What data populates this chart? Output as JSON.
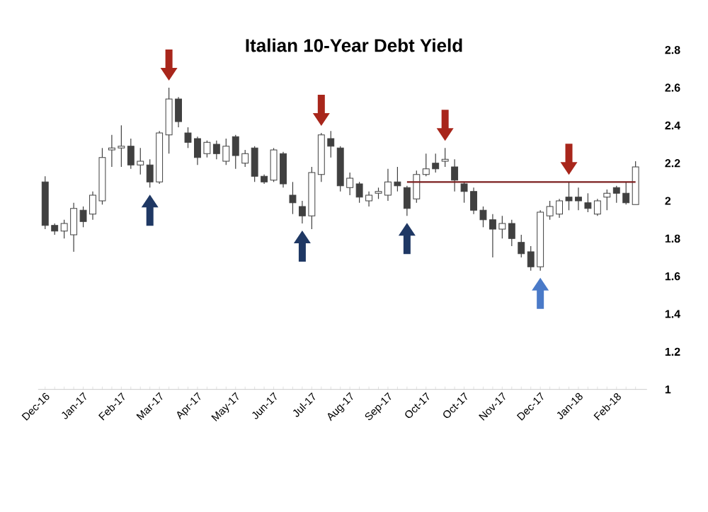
{
  "chart_data": {
    "type": "candlestick",
    "title": "Italian 10-Year Debt Yield",
    "categories": [
      "Dec-16",
      null,
      null,
      null,
      "Jan-17",
      null,
      null,
      null,
      "Feb-17",
      null,
      null,
      null,
      "Mar-17",
      null,
      null,
      null,
      "Apr-17",
      null,
      null,
      null,
      "May-17",
      null,
      null,
      null,
      "Jun-17",
      null,
      null,
      null,
      "Jul-17",
      null,
      null,
      null,
      "Aug-17",
      null,
      null,
      null,
      "Sep-17",
      null,
      null,
      null,
      "Oct-17",
      null,
      null,
      null,
      "Oct-17",
      null,
      null,
      null,
      "Nov-17",
      null,
      null,
      null,
      "Dec-17",
      null,
      null,
      null,
      "Jan-18",
      null,
      null,
      null,
      "Feb-18",
      null,
      null
    ],
    "ohlc": [
      [
        2.1,
        2.13,
        1.85,
        1.87
      ],
      [
        1.87,
        1.88,
        1.82,
        1.84
      ],
      [
        1.84,
        1.9,
        1.8,
        1.88
      ],
      [
        1.82,
        1.99,
        1.73,
        1.96
      ],
      [
        1.95,
        1.97,
        1.86,
        1.89
      ],
      [
        1.93,
        2.05,
        1.9,
        2.03
      ],
      [
        2.0,
        2.28,
        1.98,
        2.23
      ],
      [
        2.27,
        2.35,
        2.18,
        2.28
      ],
      [
        2.28,
        2.4,
        2.18,
        2.29
      ],
      [
        2.29,
        2.33,
        2.17,
        2.19
      ],
      [
        2.19,
        2.28,
        2.14,
        2.21
      ],
      [
        2.19,
        2.22,
        2.07,
        2.1
      ],
      [
        2.1,
        2.37,
        2.09,
        2.36
      ],
      [
        2.35,
        2.6,
        2.25,
        2.54
      ],
      [
        2.54,
        2.55,
        2.39,
        2.42
      ],
      [
        2.36,
        2.39,
        2.28,
        2.31
      ],
      [
        2.33,
        2.34,
        2.19,
        2.23
      ],
      [
        2.25,
        2.32,
        2.23,
        2.31
      ],
      [
        2.3,
        2.32,
        2.22,
        2.25
      ],
      [
        2.21,
        2.33,
        2.19,
        2.29
      ],
      [
        2.34,
        2.35,
        2.17,
        2.24
      ],
      [
        2.2,
        2.27,
        2.18,
        2.25
      ],
      [
        2.28,
        2.29,
        2.1,
        2.13
      ],
      [
        2.13,
        2.14,
        2.09,
        2.1
      ],
      [
        2.11,
        2.28,
        2.1,
        2.27
      ],
      [
        2.25,
        2.26,
        2.07,
        2.09
      ],
      [
        2.03,
        2.1,
        1.93,
        1.99
      ],
      [
        1.97,
        2.0,
        1.88,
        1.92
      ],
      [
        1.92,
        2.18,
        1.85,
        2.15
      ],
      [
        2.14,
        2.36,
        2.1,
        2.35
      ],
      [
        2.33,
        2.37,
        2.23,
        2.29
      ],
      [
        2.28,
        2.29,
        2.05,
        2.08
      ],
      [
        2.07,
        2.15,
        2.03,
        2.12
      ],
      [
        2.09,
        2.1,
        1.99,
        2.02
      ],
      [
        2.0,
        2.05,
        1.97,
        2.03
      ],
      [
        2.04,
        2.07,
        2.01,
        2.05
      ],
      [
        2.03,
        2.17,
        2.0,
        2.1
      ],
      [
        2.1,
        2.18,
        2.05,
        2.08
      ],
      [
        2.07,
        2.08,
        1.92,
        1.96
      ],
      [
        2.01,
        2.16,
        1.99,
        2.14
      ],
      [
        2.14,
        2.25,
        2.13,
        2.17
      ],
      [
        2.2,
        2.25,
        2.15,
        2.17
      ],
      [
        2.21,
        2.28,
        2.18,
        2.22
      ],
      [
        2.18,
        2.22,
        2.05,
        2.11
      ],
      [
        2.09,
        2.1,
        1.99,
        2.05
      ],
      [
        2.05,
        2.07,
        1.93,
        1.95
      ],
      [
        1.95,
        1.97,
        1.86,
        1.9
      ],
      [
        1.9,
        1.93,
        1.7,
        1.85
      ],
      [
        1.85,
        1.92,
        1.8,
        1.88
      ],
      [
        1.88,
        1.9,
        1.76,
        1.8
      ],
      [
        1.78,
        1.82,
        1.7,
        1.72
      ],
      [
        1.73,
        1.76,
        1.63,
        1.65
      ],
      [
        1.65,
        1.95,
        1.63,
        1.94
      ],
      [
        1.92,
        2.0,
        1.9,
        1.97
      ],
      [
        1.93,
        2.01,
        1.91,
        2.0
      ],
      [
        2.02,
        2.1,
        1.95,
        2.0
      ],
      [
        2.02,
        2.07,
        1.95,
        2.0
      ],
      [
        1.99,
        2.04,
        1.94,
        1.96
      ],
      [
        1.93,
        2.01,
        1.92,
        2.0
      ],
      [
        2.02,
        2.06,
        1.95,
        2.04
      ],
      [
        2.07,
        2.08,
        1.99,
        2.04
      ],
      [
        2.04,
        2.1,
        1.98,
        1.99
      ],
      [
        1.98,
        2.21,
        1.98,
        2.18
      ]
    ],
    "series": [
      {
        "type": "line",
        "color": "#7b1f1f",
        "values": [
          null,
          null,
          null,
          null,
          null,
          null,
          null,
          null,
          null,
          null,
          null,
          null,
          null,
          null,
          null,
          null,
          null,
          null,
          null,
          null,
          null,
          null,
          null,
          null,
          null,
          null,
          null,
          null,
          null,
          null,
          null,
          null,
          null,
          null,
          null,
          null,
          null,
          null,
          2.1,
          2.1,
          2.1,
          2.1,
          2.1,
          2.1,
          2.1,
          2.1,
          2.1,
          2.1,
          2.1,
          2.1,
          2.1,
          2.1,
          2.1,
          2.1,
          2.1,
          2.1,
          2.1,
          2.1,
          2.1,
          2.1,
          2.1,
          2.1,
          2.1
        ]
      }
    ],
    "ylim": [
      1,
      2.8
    ],
    "yticks": [
      1,
      1.2,
      1.4,
      1.6,
      1.8,
      2,
      2.2,
      2.4,
      2.6,
      2.8
    ],
    "grid": false
  }
}
